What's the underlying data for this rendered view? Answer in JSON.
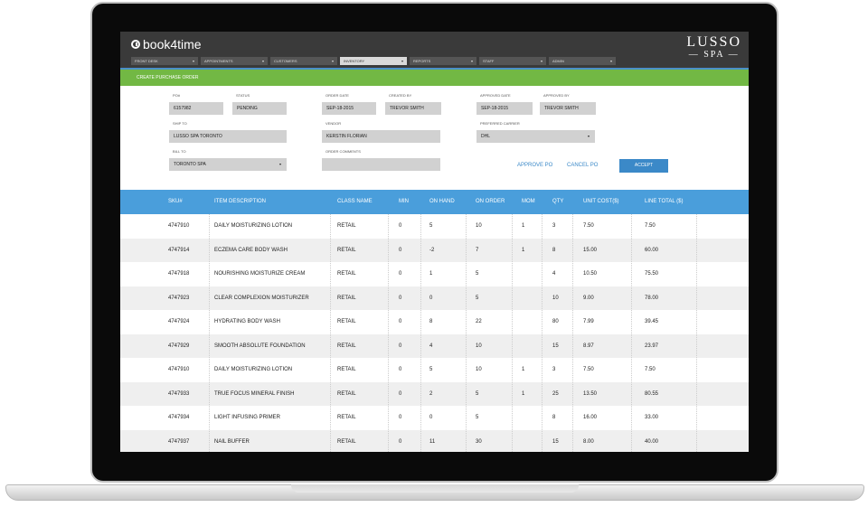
{
  "app": {
    "logo_text": "book4time",
    "brand_line1": "LUSSO",
    "brand_line2": "— SPA —"
  },
  "nav": [
    {
      "label": "FRONT DESK"
    },
    {
      "label": "APPOINTMENTS"
    },
    {
      "label": "CUSTOMERS"
    },
    {
      "label": "INVENTORY",
      "active": true
    },
    {
      "label": "REPORTS"
    },
    {
      "label": "STAFF"
    },
    {
      "label": "ADMIN"
    }
  ],
  "page_title": "CREATE PURCHASE ORDER",
  "form": {
    "po_label": "PO#",
    "po_value": "6157982",
    "status_label": "STATUS",
    "status_value": "PENDING",
    "order_date_label": "ORDER DATE",
    "order_date_value": "SEP-18-2015",
    "created_by_label": "CREATED BY",
    "created_by_value": "TREVOR SMITH",
    "approved_date_label": "APPROVED DATE",
    "approved_date_value": "SEP-18-2015",
    "approved_by_label": "APPROVED BY",
    "approved_by_value": "TREVOR SMITH",
    "ship_to_label": "SHIP TO",
    "ship_to_value": "LUSSO SPA TORONTO",
    "vendor_label": "VENDOR",
    "vendor_value": "KERSTIN FLORIAN",
    "carrier_label": "PREFERRED CARRIER",
    "carrier_value": "DHL",
    "bill_to_label": "BILL TO",
    "bill_to_value": "TORONTO SPA",
    "comments_label": "ORDER COMMENTS",
    "comments_value": ""
  },
  "actions": {
    "approve": "APPROVE PO",
    "cancel": "CANCEL PO",
    "accept": "ACCEPT"
  },
  "table": {
    "columns": [
      "SKU#",
      "ITEM DESCRIPTION",
      "CLASS NAME",
      "MIN",
      "ON HAND",
      "ON ORDER",
      "MOM",
      "QTY",
      "UNIT COST($)",
      "LINE TOTAL ($)"
    ],
    "rows": [
      [
        "4747910",
        "DAILY MOISTURIZING LOTION",
        "RETAIL",
        "0",
        "5",
        "10",
        "1",
        "3",
        "7.50",
        "7.50"
      ],
      [
        "4747914",
        "ECZEMA CARE BODY WASH",
        "RETAIL",
        "0",
        "-2",
        "7",
        "1",
        "8",
        "15.00",
        "60.00"
      ],
      [
        "4747918",
        "NOURISHING MOISTURIZE CREAM",
        "RETAIL",
        "0",
        "1",
        "5",
        "",
        "4",
        "10.50",
        "75.50"
      ],
      [
        "4747923",
        "CLEAR COMPLEXION MOISTURIZER",
        "RETAIL",
        "0",
        "0",
        "5",
        "",
        "10",
        "9.00",
        "78.00"
      ],
      [
        "4747924",
        "HYDRATING BODY WASH",
        "RETAIL",
        "0",
        "8",
        "22",
        "",
        "80",
        "7.99",
        "39.45"
      ],
      [
        "4747929",
        "SMOOTH ABSOLUTE FOUNDATION",
        "RETAIL",
        "0",
        "4",
        "10",
        "",
        "15",
        "8.97",
        "23.97"
      ],
      [
        "4747910",
        "DAILY MOISTURIZING LOTION",
        "RETAIL",
        "0",
        "5",
        "10",
        "1",
        "3",
        "7.50",
        "7.50"
      ],
      [
        "4747933",
        "TRUE FOCUS MINERAL FINISH",
        "RETAIL",
        "0",
        "2",
        "5",
        "1",
        "25",
        "13.50",
        "80.55"
      ],
      [
        "4747934",
        "LIGHT INFUSING PRIMER",
        "RETAIL",
        "0",
        "0",
        "5",
        "",
        "8",
        "16.00",
        "33.00"
      ],
      [
        "4747937",
        "NAIL BUFFER",
        "RETAIL",
        "0",
        "11",
        "30",
        "",
        "15",
        "8.00",
        "40.00"
      ]
    ]
  },
  "colors": {
    "header_bg": "#3a3a3a",
    "green_bar": "#72b844",
    "table_header": "#4a9edb",
    "accent_blue": "#3b89c8"
  }
}
